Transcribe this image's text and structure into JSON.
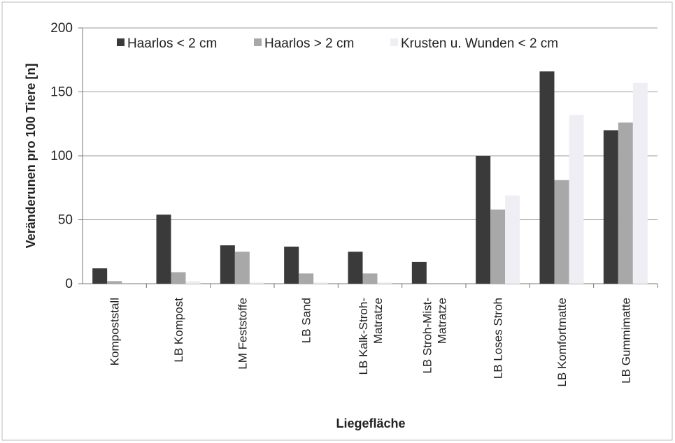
{
  "chart_data": {
    "type": "bar",
    "categories": [
      "Kompoststall",
      "LB Kompost",
      "LM Feststoffe",
      "LB Sand",
      "LB Kalk-Stroh-\nMatratze",
      "LB Stroh-Mist-\nMatratze",
      "LB Loses Stroh",
      "LB Komfortmatte",
      "LB Gummimatte"
    ],
    "series": [
      {
        "name": "Haarlos < 2 cm",
        "color": "#3a3a3a",
        "values": [
          12,
          54,
          30,
          29,
          25,
          17,
          100,
          166,
          120
        ]
      },
      {
        "name": "Haarlos > 2 cm",
        "color": "#a8a8a8",
        "values": [
          2,
          9,
          25,
          8,
          8,
          0,
          58,
          81,
          126
        ]
      },
      {
        "name": "Krusten u. Wunden < 2 cm",
        "color": "#eeeef4",
        "values": [
          0,
          2,
          1,
          1,
          1,
          0,
          69,
          132,
          157
        ]
      }
    ],
    "xlabel": "Liegefläche",
    "ylabel": "Veränderunen pro 100 Tiere [n]",
    "ylim": [
      0,
      200
    ],
    "yticks": [
      0,
      50,
      100,
      150,
      200
    ],
    "grid": true,
    "legend": "top"
  }
}
